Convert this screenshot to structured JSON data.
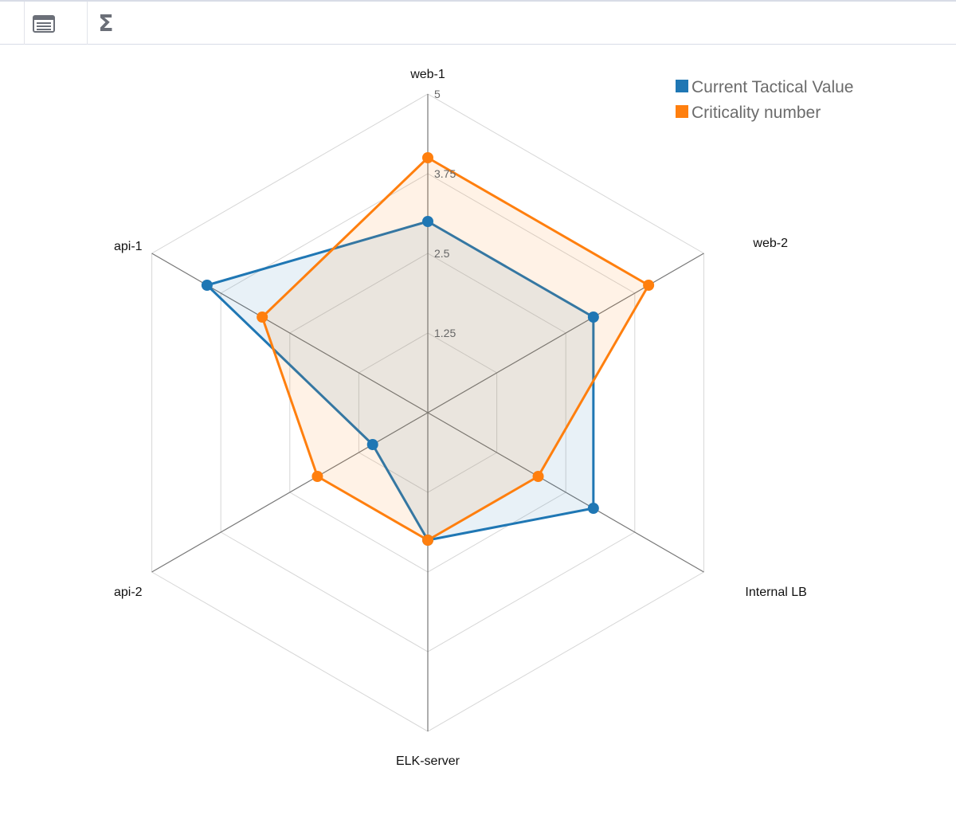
{
  "toolbar": {
    "buttons": [
      {
        "icon": "table-view-icon"
      },
      {
        "icon": "sigma-icon",
        "glyph": "Σ"
      }
    ]
  },
  "chart_data": {
    "type": "radar",
    "axes": [
      "web-1",
      "web-2",
      "Internal LB",
      "ELK-server",
      "api-2",
      "api-1"
    ],
    "ticks": [
      "1.25",
      "2.5",
      "3.75",
      "5"
    ],
    "rlim": [
      0,
      5
    ],
    "grid": true,
    "legend_position": "top-right",
    "series": [
      {
        "name": "Current Tactical Value",
        "color": "#1f77b4",
        "values": [
          3,
          3,
          3,
          2,
          1,
          4
        ]
      },
      {
        "name": "Criticality number",
        "color": "#ff7f0e",
        "values": [
          4,
          4,
          2,
          2,
          2,
          3
        ]
      }
    ]
  }
}
